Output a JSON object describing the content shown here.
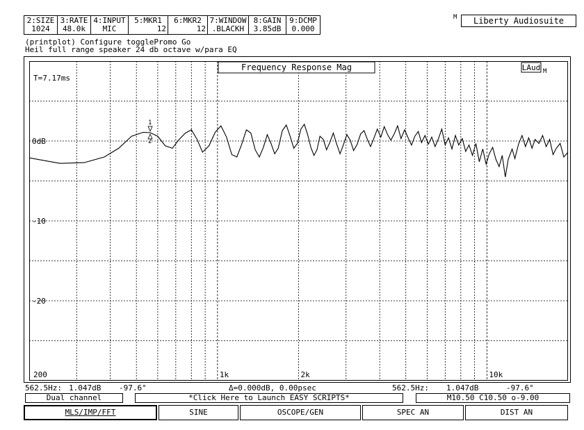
{
  "params": [
    {
      "top": "2:SIZE",
      "bottom": "1024"
    },
    {
      "top": "3:RATE",
      "bottom": "48.0k"
    },
    {
      "top": "4:INPUT",
      "bottom": "MIC"
    },
    {
      "top": "5:MKR1",
      "bottom": "12"
    },
    {
      "top": "6:MKR2",
      "bottom": "12"
    },
    {
      "top": "7:WINDOW",
      "bottom": ".BLACKH"
    },
    {
      "top": "8:GAIN",
      "bottom": "3.85dB"
    },
    {
      "top": "9:DCMP",
      "bottom": "0.000"
    }
  ],
  "app": {
    "mark": "M",
    "name": "Liberty Audiosuite"
  },
  "command": {
    "line1": "(printplot) Configure togglePromo Go",
    "line2": "Heil full range speaker 24 db octave w/para EQ"
  },
  "plot": {
    "title": "Frequency Response Mag",
    "badge_main": "LAud",
    "badge_sub": "M",
    "time_label": "T=7.17ms",
    "y_labels": [
      "0dB",
      "-10",
      "-20"
    ],
    "x_labels": [
      "200",
      "1k",
      "2k",
      "10k"
    ],
    "marker_top": "1",
    "marker_bottom": "2"
  },
  "chart_data": {
    "type": "line",
    "title": "Frequency Response Mag",
    "xscale": "log",
    "xlim": [
      200,
      20000
    ],
    "ylim": [
      -30,
      10
    ],
    "x_ticks": [
      200,
      1000,
      2000,
      10000
    ],
    "y_ticks": [
      0,
      -10,
      -20
    ],
    "grid": true,
    "series": [
      {
        "points": [
          [
            200,
            -2.1
          ],
          [
            260,
            -2.8
          ],
          [
            320,
            -2.7
          ],
          [
            380,
            -2.0
          ],
          [
            430,
            -0.9
          ],
          [
            480,
            0.6
          ],
          [
            530,
            1.1
          ],
          [
            562.5,
            1.047
          ],
          [
            600,
            0.6
          ],
          [
            640,
            -0.6
          ],
          [
            680,
            -0.9
          ],
          [
            720,
            0.2
          ],
          [
            760,
            1.0
          ],
          [
            800,
            1.4
          ],
          [
            840,
            0.2
          ],
          [
            880,
            -1.4
          ],
          [
            930,
            -0.6
          ],
          [
            980,
            1.1
          ],
          [
            1030,
            1.9
          ],
          [
            1080,
            0.5
          ],
          [
            1130,
            -1.7
          ],
          [
            1180,
            -2.0
          ],
          [
            1230,
            -0.4
          ],
          [
            1280,
            1.4
          ],
          [
            1330,
            1.0
          ],
          [
            1380,
            -1.1
          ],
          [
            1430,
            -2.0
          ],
          [
            1480,
            -0.8
          ],
          [
            1530,
            0.8
          ],
          [
            1580,
            -0.3
          ],
          [
            1630,
            -1.6
          ],
          [
            1680,
            -0.9
          ],
          [
            1740,
            1.3
          ],
          [
            1800,
            2.0
          ],
          [
            1860,
            0.6
          ],
          [
            1920,
            -0.9
          ],
          [
            1980,
            -0.3
          ],
          [
            2040,
            1.5
          ],
          [
            2100,
            2.1
          ],
          [
            2160,
            0.8
          ],
          [
            2220,
            -0.8
          ],
          [
            2280,
            -1.8
          ],
          [
            2340,
            -1.1
          ],
          [
            2400,
            0.6
          ],
          [
            2470,
            0.2
          ],
          [
            2540,
            -1.1
          ],
          [
            2610,
            -0.2
          ],
          [
            2690,
            1.0
          ],
          [
            2770,
            -0.4
          ],
          [
            2850,
            -1.6
          ],
          [
            2930,
            -0.5
          ],
          [
            3020,
            0.8
          ],
          [
            3110,
            0.1
          ],
          [
            3200,
            -1.2
          ],
          [
            3300,
            -0.4
          ],
          [
            3400,
            0.9
          ],
          [
            3500,
            1.3
          ],
          [
            3600,
            0.2
          ],
          [
            3700,
            -0.7
          ],
          [
            3810,
            0.4
          ],
          [
            3920,
            1.5
          ],
          [
            4040,
            0.5
          ],
          [
            4160,
            1.8
          ],
          [
            4280,
            0.8
          ],
          [
            4400,
            0.1
          ],
          [
            4530,
            0.9
          ],
          [
            4660,
            1.9
          ],
          [
            4800,
            0.3
          ],
          [
            4950,
            1.4
          ],
          [
            5100,
            0.4
          ],
          [
            5250,
            -0.5
          ],
          [
            5400,
            0.6
          ],
          [
            5560,
            1.2
          ],
          [
            5720,
            -0.2
          ],
          [
            5890,
            0.7
          ],
          [
            6060,
            -0.4
          ],
          [
            6240,
            0.5
          ],
          [
            6420,
            -0.7
          ],
          [
            6610,
            0.3
          ],
          [
            6800,
            1.5
          ],
          [
            7000,
            -0.5
          ],
          [
            7200,
            0.4
          ],
          [
            7420,
            -1.0
          ],
          [
            7640,
            0.7
          ],
          [
            7860,
            -0.5
          ],
          [
            8100,
            0.3
          ],
          [
            8340,
            -1.3
          ],
          [
            8580,
            -0.5
          ],
          [
            8840,
            -1.8
          ],
          [
            9100,
            -0.3
          ],
          [
            9370,
            -2.6
          ],
          [
            9650,
            -1.0
          ],
          [
            9930,
            -2.9
          ],
          [
            10200,
            -1.6
          ],
          [
            10500,
            -0.8
          ],
          [
            10800,
            -2.3
          ],
          [
            11100,
            -3.2
          ],
          [
            11400,
            -1.8
          ],
          [
            11700,
            -4.5
          ],
          [
            12000,
            -2.3
          ],
          [
            12400,
            -1.0
          ],
          [
            12700,
            -2.2
          ],
          [
            13100,
            -0.4
          ],
          [
            13500,
            0.7
          ],
          [
            13900,
            -0.7
          ],
          [
            14300,
            0.4
          ],
          [
            14700,
            -0.9
          ],
          [
            15100,
            0.2
          ],
          [
            15600,
            -0.3
          ],
          [
            16100,
            0.7
          ],
          [
            16600,
            -0.7
          ],
          [
            17100,
            0.2
          ],
          [
            17600,
            -1.7
          ],
          [
            18100,
            -0.9
          ],
          [
            18700,
            -0.3
          ],
          [
            19300,
            -2.0
          ],
          [
            20000,
            -1.4
          ]
        ]
      }
    ]
  },
  "status": {
    "left_freq": "562.5Hz:",
    "left_val": "1.047dB",
    "left_phase": "-97.6°",
    "delta": "Δ=0.000dB, 0.00psec",
    "right_freq": "562.5Hz:",
    "right_val": "1.047dB",
    "right_phase": "-97.6°"
  },
  "info": {
    "channel": "Dual channel",
    "scripts": "*Click Here to Launch EASY SCRIPTS*",
    "mic": "M10.50 C10.50 o-9.00"
  },
  "buttons": [
    {
      "label": "MLS/IMP/FFT",
      "active": true
    },
    {
      "label": "SINE",
      "active": false
    },
    {
      "label": "OSCOPE/GEN",
      "active": false
    },
    {
      "label": "SPEC AN",
      "active": false
    },
    {
      "label": "DIST AN",
      "active": false
    }
  ]
}
